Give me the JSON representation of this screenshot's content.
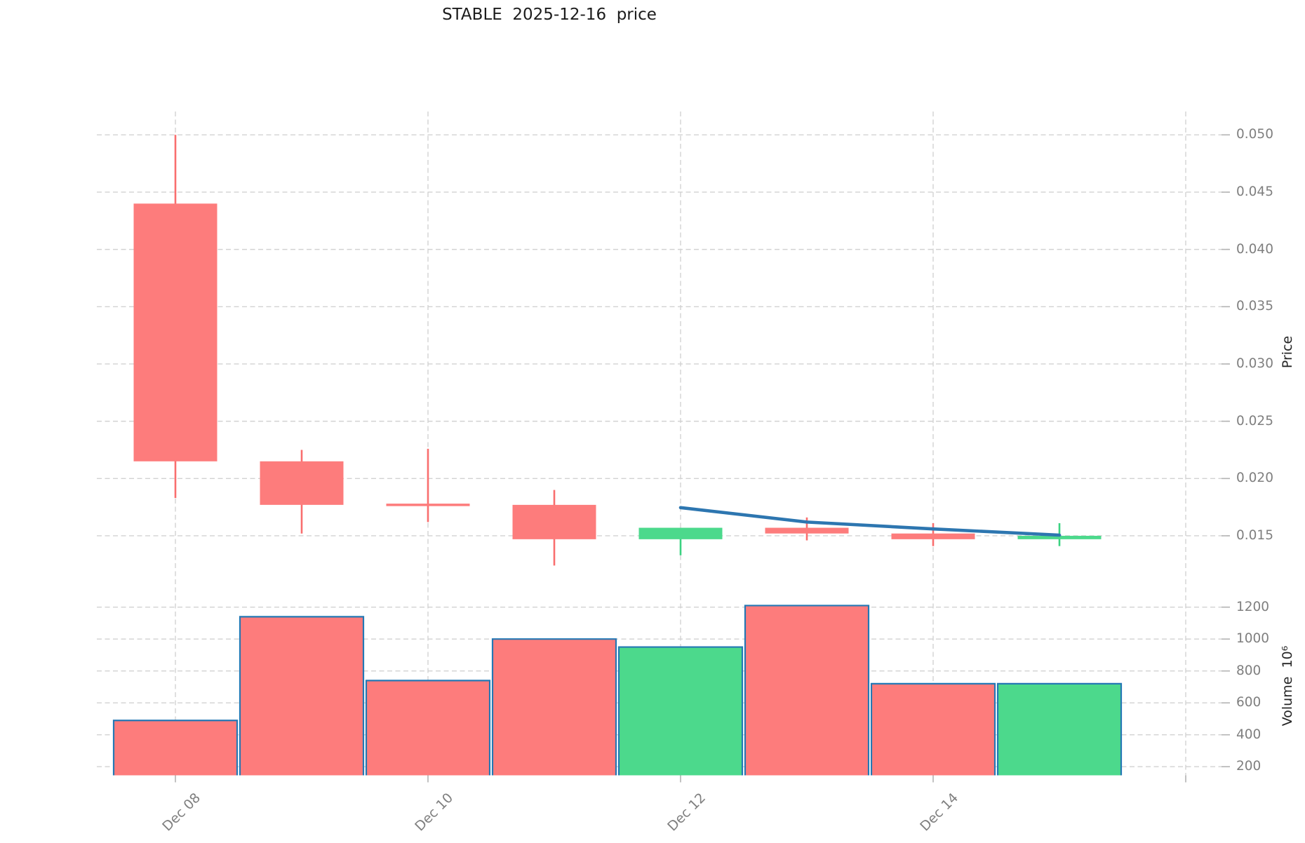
{
  "title": "STABLE  2025-12-16  price",
  "colors": {
    "up_body": "#4cd98c",
    "up_wick": "#3bd281",
    "down_body": "#fd7c7c",
    "down_wick": "#f96e6e",
    "volume_bar_edge": "#2478b4",
    "ma_line": "#2d76b0",
    "gridline": "#d2d2d2",
    "tick_mark": "#b3b3b3",
    "tick_label": "#7f7f7f",
    "title_color": "#1c1c1c"
  },
  "chart_data": {
    "type": "candlestick",
    "title": "STABLE  2025-12-16  price",
    "grid": true,
    "dates": [
      "Dec 08",
      "Dec 09",
      "Dec 10",
      "Dec 11",
      "Dec 12",
      "Dec 13",
      "Dec 14",
      "Dec 15"
    ],
    "candles": [
      {
        "date": "Dec 08",
        "open": 0.044,
        "high": 0.05,
        "low": 0.0183,
        "close": 0.0215,
        "volume": 490,
        "direction": "down"
      },
      {
        "date": "Dec 09",
        "open": 0.0215,
        "high": 0.0225,
        "low": 0.0152,
        "close": 0.0177,
        "volume": 1140,
        "direction": "down"
      },
      {
        "date": "Dec 10",
        "open": 0.0177,
        "high": 0.0226,
        "low": 0.0162,
        "close": 0.0177,
        "volume": 740,
        "direction": "down"
      },
      {
        "date": "Dec 11",
        "open": 0.0177,
        "high": 0.019,
        "low": 0.0124,
        "close": 0.0147,
        "volume": 1000,
        "direction": "down"
      },
      {
        "date": "Dec 12",
        "open": 0.0147,
        "high": 0.0157,
        "low": 0.0133,
        "close": 0.0157,
        "volume": 950,
        "direction": "up"
      },
      {
        "date": "Dec 13",
        "open": 0.0157,
        "high": 0.0166,
        "low": 0.0146,
        "close": 0.0152,
        "volume": 1210,
        "direction": "down"
      },
      {
        "date": "Dec 14",
        "open": 0.0152,
        "high": 0.0161,
        "low": 0.0141,
        "close": 0.0147,
        "volume": 720,
        "direction": "down"
      },
      {
        "date": "Dec 15",
        "open": 0.0147,
        "high": 0.0161,
        "low": 0.0141,
        "close": 0.015,
        "volume": 720,
        "direction": "up"
      }
    ],
    "ma_line": {
      "name": "moving-average-5",
      "values": [
        null,
        null,
        null,
        null,
        0.01746,
        0.0162,
        0.0156,
        0.01506
      ]
    },
    "price_axis": {
      "label": "Price",
      "side": "right",
      "tick_values": [
        0.05,
        0.045,
        0.04,
        0.035,
        0.03,
        0.025,
        0.02,
        0.015
      ],
      "tick_labels": [
        "0.050",
        "0.045",
        "0.040",
        "0.035",
        "0.030",
        "0.025",
        "0.020",
        "0.015"
      ]
    },
    "volume_axis": {
      "label": "Volume  10⁶",
      "side": "right",
      "unit": "10^6",
      "tick_values": [
        1200,
        1000,
        800,
        600,
        400,
        200
      ],
      "tick_labels": [
        "1200",
        "1000",
        "800",
        "600",
        "400",
        "200"
      ]
    },
    "x_axis": {
      "ticks": [
        {
          "index": 0,
          "label": "Dec 08"
        },
        {
          "index": 2,
          "label": "Dec 10"
        },
        {
          "index": 4,
          "label": "Dec 12"
        },
        {
          "index": 6,
          "label": "Dec 14"
        },
        {
          "index": 8,
          "label": ""
        }
      ]
    }
  }
}
